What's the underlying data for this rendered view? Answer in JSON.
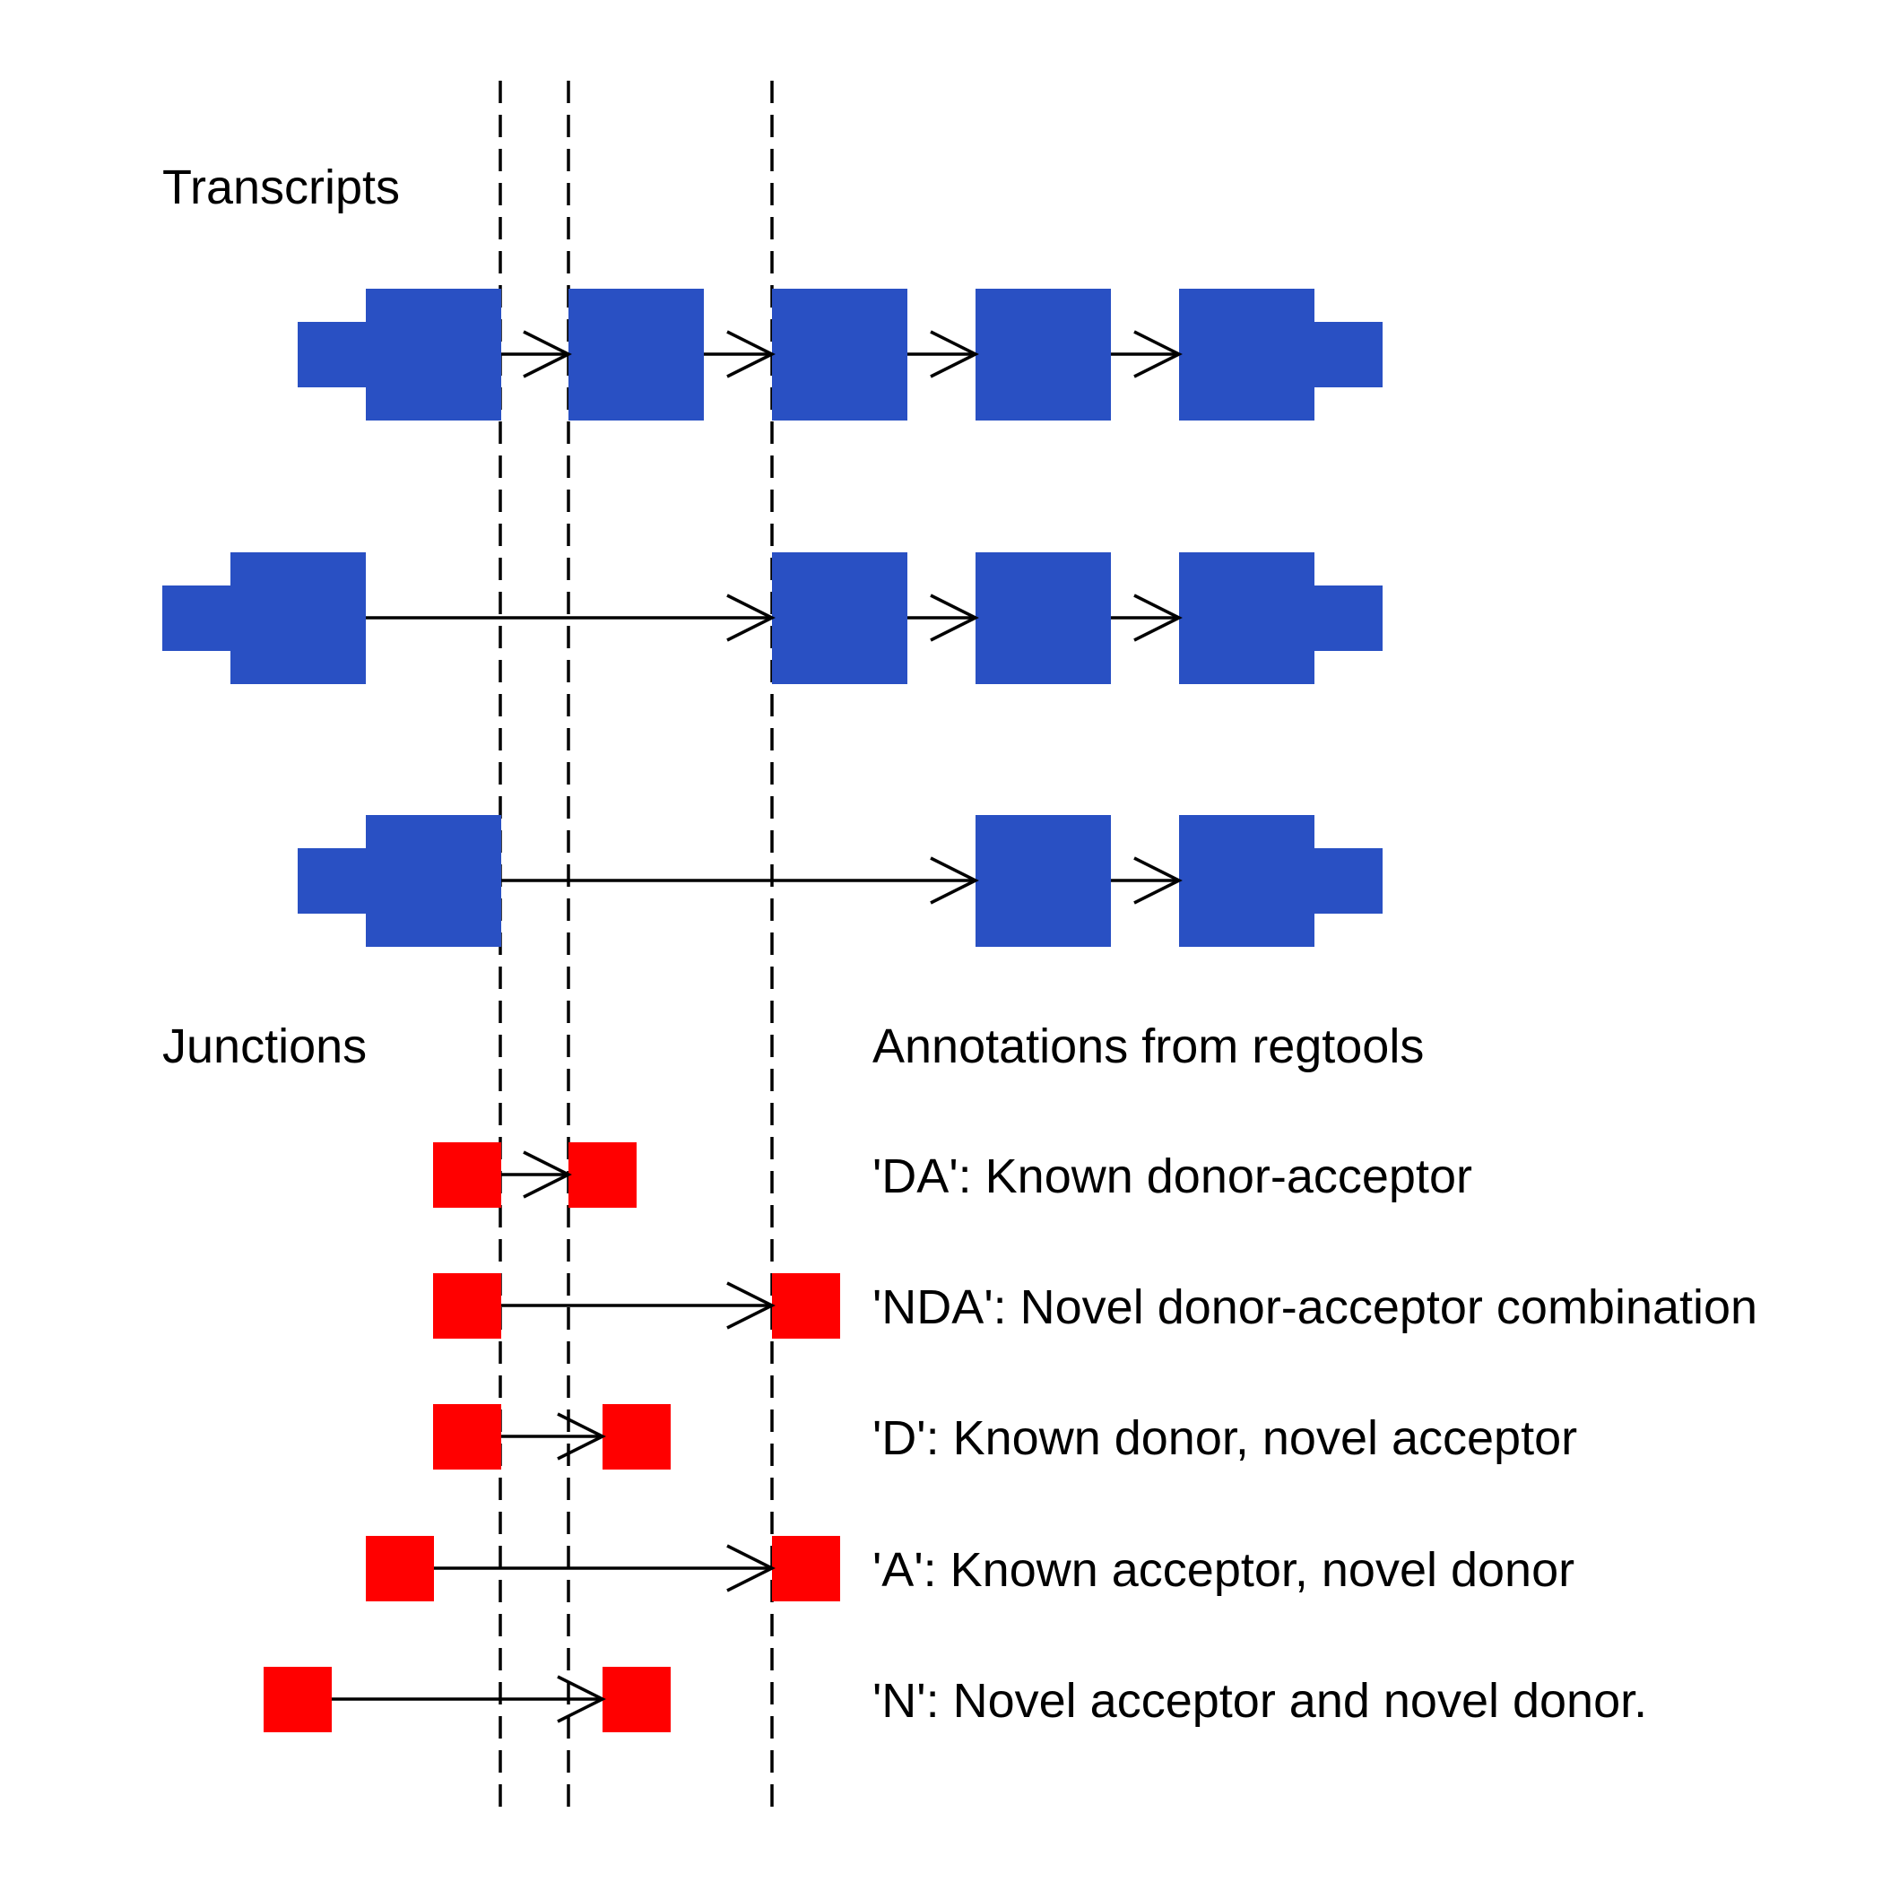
{
  "sections": {
    "transcripts_title": "Transcripts",
    "junctions_title": "Junctions",
    "annotations_title": "Annotations from regtools"
  },
  "colors": {
    "exon": "#2950C3",
    "junction": "#FF0000",
    "line": "#000000"
  },
  "annotations": [
    {
      "code": "DA",
      "text": "'DA': Known donor-acceptor"
    },
    {
      "code": "NDA",
      "text": "'NDA': Novel donor-acceptor combination"
    },
    {
      "code": "D",
      "text": "'D': Known donor, novel acceptor"
    },
    {
      "code": "A",
      "text": "'A': Known acceptor, novel donor"
    },
    {
      "code": "N",
      "text": "'N': Novel acceptor and novel donor."
    }
  ]
}
